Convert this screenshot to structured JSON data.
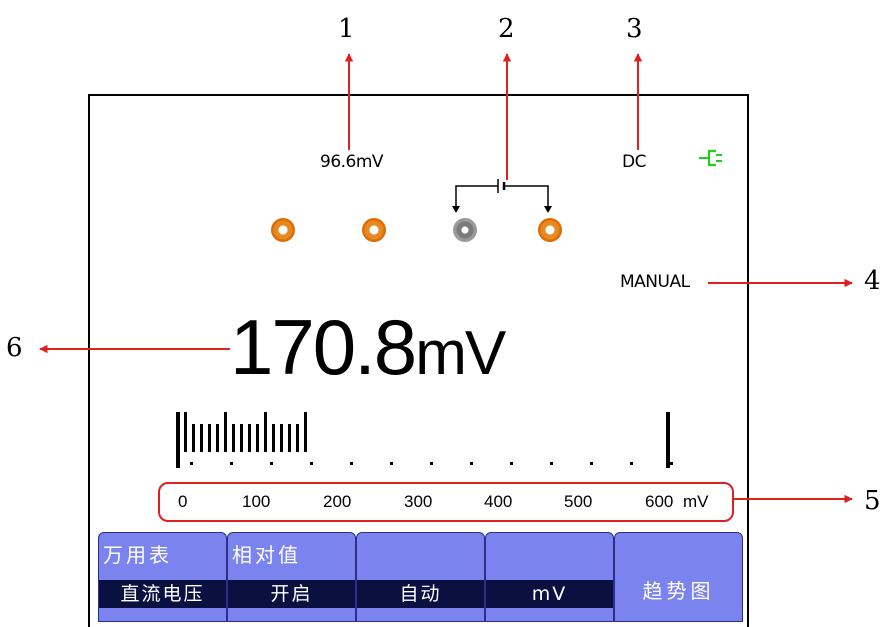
{
  "callouts": {
    "c1": "1",
    "c2": "2",
    "c3": "3",
    "c4": "4",
    "c5": "5",
    "c6": "6"
  },
  "status": {
    "reference_value": "96.6mV",
    "coupling": "DC",
    "range_mode": "MANUAL"
  },
  "power_icon": "plug-icon",
  "jacks": [
    "orange",
    "orange",
    "gray",
    "orange"
  ],
  "reading": {
    "value": "170.8",
    "unit": "mV"
  },
  "bargraph": {
    "fill_fraction": 0.27
  },
  "scale": {
    "labels": [
      "0",
      "100",
      "200",
      "300",
      "400",
      "500",
      "600"
    ],
    "unit": "mV"
  },
  "menu": {
    "keys": [
      {
        "top": "万用表",
        "bottom": "直流电压"
      },
      {
        "top": "相对值",
        "bottom": "开启"
      },
      {
        "top": "",
        "bottom": "自动"
      },
      {
        "top": "",
        "bottom": "mV"
      },
      {
        "label": "趋势图"
      }
    ]
  },
  "colors": {
    "annotation": "#e02020",
    "menu_bg": "#7b84ee",
    "menu_dark": "#0a1040",
    "power_icon": "#22cc22",
    "jack_orange": "#e8891e"
  }
}
